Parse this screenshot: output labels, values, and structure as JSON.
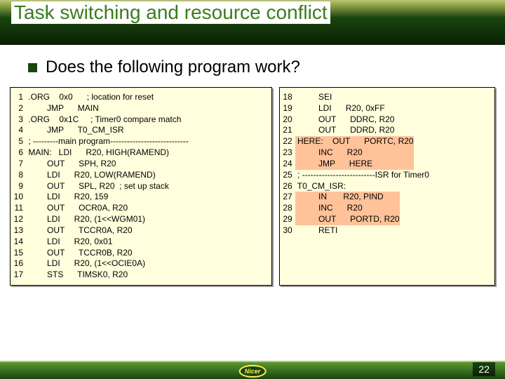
{
  "title": "Task switching and resource conflict",
  "subtitle": "Does the following program work?",
  "page_number": "22",
  "logo_text": "Nicer",
  "left_block": {
    "line_numbers": "  1\n  2\n  3\n  4\n  5\n  6\n  7\n  8\n  9\n10\n11\n12\n13\n14\n15\n16\n17",
    "code": " .ORG    0x0      ; location for reset\n         JMP      MAIN\n .ORG    0x1C     ; Timer0 compare match\n         JMP      T0_CM_ISR\n ; ---------main program----------------------------\n MAIN:   LDI      R20, HIGH(RAMEND)\n         OUT      SPH, R20\n         LDI      R20, LOW(RAMEND)\n         OUT      SPL, R20  ; set up stack\n         LDI      R20, 159\n         OUT      OCR0A, R20\n         LDI      R20, (1<<WGM01)\n         OUT      TCCR0A, R20\n         LDI      R20, 0x01\n         OUT      TCCR0B, R20\n         LDI      R20, (1<<OCIE0A)\n         STS      TIMSK0, R20"
  },
  "right_block": {
    "line_numbers": "18\n19\n20\n21\n22\n23\n24\n25\n26\n27\n28\n29\n30",
    "code_pre": "          SEI\n          LDI      R20, 0xFF\n          OUT      DDRC, R20\n          OUT      DDRD, R20\n",
    "hl1": " HERE:    OUT      PORTC, R20\n          INC      R20\n          JMP      HERE",
    "code_mid": "\n ; --------------------------ISR for Timer0\n T0_CM_ISR:\n",
    "hl2": "          IN       R20, PIND\n          INC      R20\n          OUT      PORTD, R20",
    "code_post": "\n          RETI"
  }
}
